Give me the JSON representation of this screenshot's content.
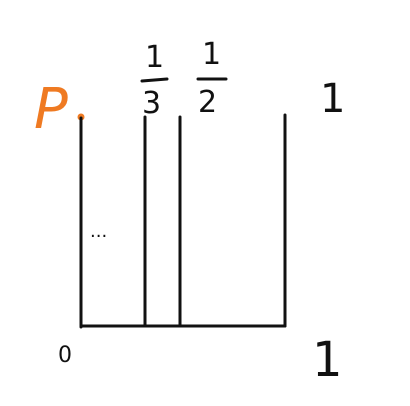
{
  "labels": {
    "point_p": "P",
    "one_third_numerator": "1",
    "one_third_denominator": "3",
    "one_half_numerator": "1",
    "one_half_denominator": "2",
    "top_right_one": "1",
    "origin_zero": "0",
    "bottom_right_one": "1",
    "ellipsis": "..."
  },
  "colors": {
    "ink": "#111111",
    "accent": "#ef7a22",
    "background": "#ffffff"
  }
}
